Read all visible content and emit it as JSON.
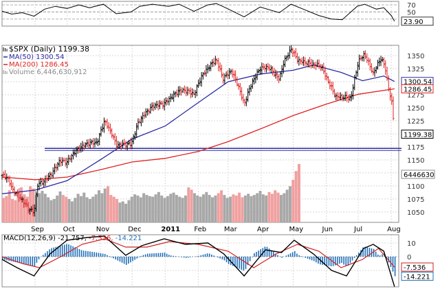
{
  "chart_data": {
    "type": "line",
    "panels": {
      "rsi": {
        "levels": [
          70,
          50,
          30
        ],
        "ylim": [
          10,
          80
        ],
        "current_value": "23.90",
        "series": [
          {
            "x": "2010-08-01",
            "y": 52
          },
          {
            "x": "2010-08-10",
            "y": 44
          },
          {
            "x": "2010-08-20",
            "y": 48
          },
          {
            "x": "2010-08-31",
            "y": 38
          },
          {
            "x": "2010-09-10",
            "y": 58
          },
          {
            "x": "2010-09-20",
            "y": 66
          },
          {
            "x": "2010-10-01",
            "y": 60
          },
          {
            "x": "2010-10-12",
            "y": 70
          },
          {
            "x": "2010-10-22",
            "y": 62
          },
          {
            "x": "2010-11-04",
            "y": 72
          },
          {
            "x": "2010-11-16",
            "y": 45
          },
          {
            "x": "2010-11-30",
            "y": 50
          },
          {
            "x": "2010-12-08",
            "y": 66
          },
          {
            "x": "2010-12-20",
            "y": 72
          },
          {
            "x": "2011-01-04",
            "y": 66
          },
          {
            "x": "2011-01-14",
            "y": 72
          },
          {
            "x": "2011-01-28",
            "y": 52
          },
          {
            "x": "2011-02-10",
            "y": 70
          },
          {
            "x": "2011-02-18",
            "y": 74
          },
          {
            "x": "2011-02-28",
            "y": 60
          },
          {
            "x": "2011-03-16",
            "y": 36
          },
          {
            "x": "2011-03-31",
            "y": 64
          },
          {
            "x": "2011-04-18",
            "y": 48
          },
          {
            "x": "2011-04-29",
            "y": 72
          },
          {
            "x": "2011-05-12",
            "y": 56
          },
          {
            "x": "2011-05-25",
            "y": 40
          },
          {
            "x": "2011-06-06",
            "y": 30
          },
          {
            "x": "2011-06-16",
            "y": 28
          },
          {
            "x": "2011-06-30",
            "y": 66
          },
          {
            "x": "2011-07-07",
            "y": 72
          },
          {
            "x": "2011-07-18",
            "y": 58
          },
          {
            "x": "2011-07-25",
            "y": 62
          },
          {
            "x": "2011-08-01",
            "y": 40
          },
          {
            "x": "2011-08-04",
            "y": 23.9
          }
        ]
      },
      "price": {
        "legend": [
          {
            "label": "$SPX (Daily) 1199.38",
            "color": "#000000",
            "marker": "bars"
          },
          {
            "label": "MA(50) 1300.54",
            "color": "#2a2aa0",
            "marker": "line"
          },
          {
            "label": "MA(200) 1286.45",
            "color": "#e02020",
            "marker": "line"
          },
          {
            "label": "Volume 6,446,630,912",
            "color": "#888888",
            "marker": "vbars"
          }
        ],
        "ylim": [
          1030,
          1370
        ],
        "y_ticks": [
          1050,
          1075,
          1100,
          1125,
          1150,
          1175,
          1200,
          1225,
          1250,
          1275,
          1300,
          1325,
          1350
        ],
        "price_tags": [
          {
            "text": "1300.54",
            "value": 1300.54,
            "style": "ma50"
          },
          {
            "text": "1286.45",
            "value": 1286.45,
            "style": "ma200"
          },
          {
            "text": "1199.38",
            "value": 1199.38,
            "style": "last"
          }
        ],
        "volume_tag": "6446630",
        "support_level": 1172,
        "close_series": [
          {
            "x": "2010-08-01",
            "y": 1120
          },
          {
            "x": "2010-08-06",
            "y": 1116
          },
          {
            "x": "2010-08-11",
            "y": 1092
          },
          {
            "x": "2010-08-16",
            "y": 1082
          },
          {
            "x": "2010-08-20",
            "y": 1072
          },
          {
            "x": "2010-08-26",
            "y": 1056
          },
          {
            "x": "2010-08-31",
            "y": 1049
          },
          {
            "x": "2010-09-03",
            "y": 1102
          },
          {
            "x": "2010-09-10",
            "y": 1110
          },
          {
            "x": "2010-09-17",
            "y": 1125
          },
          {
            "x": "2010-09-24",
            "y": 1148
          },
          {
            "x": "2010-10-01",
            "y": 1146
          },
          {
            "x": "2010-10-08",
            "y": 1165
          },
          {
            "x": "2010-10-15",
            "y": 1176
          },
          {
            "x": "2010-10-22",
            "y": 1183
          },
          {
            "x": "2010-10-29",
            "y": 1183
          },
          {
            "x": "2010-11-05",
            "y": 1225
          },
          {
            "x": "2010-11-12",
            "y": 1200
          },
          {
            "x": "2010-11-16",
            "y": 1178
          },
          {
            "x": "2010-11-23",
            "y": 1180
          },
          {
            "x": "2010-11-30",
            "y": 1180
          },
          {
            "x": "2010-12-07",
            "y": 1223
          },
          {
            "x": "2010-12-14",
            "y": 1241
          },
          {
            "x": "2010-12-21",
            "y": 1254
          },
          {
            "x": "2010-12-31",
            "y": 1258
          },
          {
            "x": "2011-01-07",
            "y": 1271
          },
          {
            "x": "2011-01-14",
            "y": 1283
          },
          {
            "x": "2011-01-21",
            "y": 1283
          },
          {
            "x": "2011-01-28",
            "y": 1276
          },
          {
            "x": "2011-02-04",
            "y": 1310
          },
          {
            "x": "2011-02-11",
            "y": 1329
          },
          {
            "x": "2011-02-18",
            "y": 1343
          },
          {
            "x": "2011-02-24",
            "y": 1306
          },
          {
            "x": "2011-03-04",
            "y": 1321
          },
          {
            "x": "2011-03-10",
            "y": 1295
          },
          {
            "x": "2011-03-16",
            "y": 1257
          },
          {
            "x": "2011-03-23",
            "y": 1297
          },
          {
            "x": "2011-03-31",
            "y": 1326
          },
          {
            "x": "2011-04-08",
            "y": 1328
          },
          {
            "x": "2011-04-18",
            "y": 1305
          },
          {
            "x": "2011-04-22",
            "y": 1337
          },
          {
            "x": "2011-04-29",
            "y": 1363
          },
          {
            "x": "2011-05-06",
            "y": 1340
          },
          {
            "x": "2011-05-13",
            "y": 1337
          },
          {
            "x": "2011-05-20",
            "y": 1333
          },
          {
            "x": "2011-05-27",
            "y": 1331
          },
          {
            "x": "2011-06-03",
            "y": 1300
          },
          {
            "x": "2011-06-10",
            "y": 1271
          },
          {
            "x": "2011-06-17",
            "y": 1271
          },
          {
            "x": "2011-06-24",
            "y": 1268
          },
          {
            "x": "2011-07-01",
            "y": 1339
          },
          {
            "x": "2011-07-07",
            "y": 1353
          },
          {
            "x": "2011-07-15",
            "y": 1316
          },
          {
            "x": "2011-07-22",
            "y": 1345
          },
          {
            "x": "2011-07-26",
            "y": 1331
          },
          {
            "x": "2011-07-29",
            "y": 1292
          },
          {
            "x": "2011-08-02",
            "y": 1254
          },
          {
            "x": "2011-08-04",
            "y": 1199
          }
        ],
        "ma50_series": [
          {
            "x": "2010-08-01",
            "y": 1085
          },
          {
            "x": "2010-09-01",
            "y": 1092
          },
          {
            "x": "2010-10-01",
            "y": 1110
          },
          {
            "x": "2010-11-01",
            "y": 1150
          },
          {
            "x": "2010-12-01",
            "y": 1190
          },
          {
            "x": "2011-01-01",
            "y": 1215
          },
          {
            "x": "2011-02-01",
            "y": 1260
          },
          {
            "x": "2011-03-01",
            "y": 1300
          },
          {
            "x": "2011-04-01",
            "y": 1315
          },
          {
            "x": "2011-05-01",
            "y": 1322
          },
          {
            "x": "2011-05-20",
            "y": 1332
          },
          {
            "x": "2011-06-15",
            "y": 1318
          },
          {
            "x": "2011-07-05",
            "y": 1302
          },
          {
            "x": "2011-07-25",
            "y": 1311
          },
          {
            "x": "2011-08-04",
            "y": 1300.54
          }
        ],
        "ma200_series": [
          {
            "x": "2010-08-01",
            "y": 1117
          },
          {
            "x": "2010-09-01",
            "y": 1112
          },
          {
            "x": "2010-10-01",
            "y": 1117
          },
          {
            "x": "2010-11-01",
            "y": 1131
          },
          {
            "x": "2010-12-01",
            "y": 1146
          },
          {
            "x": "2011-01-01",
            "y": 1153
          },
          {
            "x": "2011-02-01",
            "y": 1166
          },
          {
            "x": "2011-03-01",
            "y": 1185
          },
          {
            "x": "2011-04-01",
            "y": 1210
          },
          {
            "x": "2011-05-01",
            "y": 1235
          },
          {
            "x": "2011-06-01",
            "y": 1257
          },
          {
            "x": "2011-07-01",
            "y": 1276
          },
          {
            "x": "2011-08-04",
            "y": 1286.45
          }
        ],
        "volume_bars": {
          "start": "2010-08-01",
          "interval_days": 2.8,
          "scale_note": "relative",
          "values": [
            0.42,
            0.45,
            0.55,
            0.4,
            0.38,
            0.52,
            0.6,
            0.48,
            0.44,
            0.62,
            0.58,
            0.47,
            0.5,
            0.54,
            0.49,
            0.43,
            0.38,
            0.4,
            0.46,
            0.53,
            0.47,
            0.44,
            0.4,
            0.36,
            0.42,
            0.49,
            0.45,
            0.51,
            0.43,
            0.4,
            0.44,
            0.48,
            0.55,
            0.5,
            0.58,
            0.62,
            0.47,
            0.44,
            0.4,
            0.34,
            0.36,
            0.32,
            0.38,
            0.44,
            0.48,
            0.46,
            0.43,
            0.5,
            0.47,
            0.45,
            0.44,
            0.48,
            0.52,
            0.46,
            0.42,
            0.45,
            0.49,
            0.51,
            0.47,
            0.44,
            0.42,
            0.46,
            0.6,
            0.56,
            0.5,
            0.46,
            0.44,
            0.48,
            0.52,
            0.47,
            0.43,
            0.46,
            0.5,
            0.55,
            0.47,
            0.42,
            0.44,
            0.48,
            0.46,
            0.51,
            0.43,
            0.46,
            0.49,
            0.45,
            0.47,
            0.5,
            0.54,
            0.48,
            0.46,
            0.52,
            0.49,
            0.55,
            0.51,
            0.47,
            0.5,
            0.56,
            0.62,
            0.73,
            0.88,
            1.0
          ]
        }
      },
      "macd": {
        "title": "MACD(12,26,9) -21.757, -7.536, -14.221",
        "legend_segments": [
          {
            "text": "MACD(12,26,9) -21.757,",
            "color": "#000000"
          },
          {
            "text": " -7.536,",
            "color": "#d02020"
          },
          {
            "text": " -14.221",
            "color": "#1f6fb8"
          }
        ],
        "ylim": [
          -22,
          16
        ],
        "y_ticks": [
          10,
          0,
          -10
        ],
        "tags": [
          {
            "text": "-7.536",
            "value": -7.536,
            "style": "signal"
          },
          {
            "text": "-14.221",
            "value": -14.221,
            "style": "hist"
          }
        ],
        "macd_series": [
          {
            "x": "2010-08-01",
            "y": -2
          },
          {
            "x": "2010-08-15",
            "y": -8
          },
          {
            "x": "2010-08-31",
            "y": -14
          },
          {
            "x": "2010-09-15",
            "y": 2
          },
          {
            "x": "2010-10-01",
            "y": 12
          },
          {
            "x": "2010-10-20",
            "y": 14
          },
          {
            "x": "2010-11-05",
            "y": 15
          },
          {
            "x": "2010-11-25",
            "y": 1
          },
          {
            "x": "2010-12-10",
            "y": 8
          },
          {
            "x": "2010-12-31",
            "y": 13
          },
          {
            "x": "2011-01-20",
            "y": 9
          },
          {
            "x": "2011-02-10",
            "y": 10
          },
          {
            "x": "2011-02-25",
            "y": 2
          },
          {
            "x": "2011-03-16",
            "y": -14
          },
          {
            "x": "2011-04-05",
            "y": 5
          },
          {
            "x": "2011-04-20",
            "y": 3
          },
          {
            "x": "2011-05-02",
            "y": 12
          },
          {
            "x": "2011-05-20",
            "y": 2
          },
          {
            "x": "2011-06-06",
            "y": -10
          },
          {
            "x": "2011-06-20",
            "y": -14
          },
          {
            "x": "2011-07-06",
            "y": 6
          },
          {
            "x": "2011-07-15",
            "y": 9
          },
          {
            "x": "2011-07-25",
            "y": 4
          },
          {
            "x": "2011-08-04",
            "y": -21.757
          }
        ],
        "signal_series": [
          {
            "x": "2010-08-01",
            "y": 0
          },
          {
            "x": "2010-08-20",
            "y": -5
          },
          {
            "x": "2010-09-05",
            "y": -8
          },
          {
            "x": "2010-09-25",
            "y": 0
          },
          {
            "x": "2010-10-15",
            "y": 9
          },
          {
            "x": "2010-11-05",
            "y": 13
          },
          {
            "x": "2010-11-25",
            "y": 7
          },
          {
            "x": "2010-12-15",
            "y": 7
          },
          {
            "x": "2011-01-05",
            "y": 11
          },
          {
            "x": "2011-02-01",
            "y": 9
          },
          {
            "x": "2011-03-01",
            "y": 4
          },
          {
            "x": "2011-03-25",
            "y": -8
          },
          {
            "x": "2011-04-15",
            "y": 2
          },
          {
            "x": "2011-05-05",
            "y": 9
          },
          {
            "x": "2011-05-25",
            "y": 4
          },
          {
            "x": "2011-06-15",
            "y": -8
          },
          {
            "x": "2011-07-05",
            "y": -2
          },
          {
            "x": "2011-07-20",
            "y": 6
          },
          {
            "x": "2011-08-04",
            "y": -7.536
          }
        ]
      }
    },
    "x_axis": {
      "labels": [
        {
          "text": "Sep",
          "date": "2010-09-01",
          "bold": false
        },
        {
          "text": "Oct",
          "date": "2010-10-01",
          "bold": false
        },
        {
          "text": "Nov",
          "date": "2010-11-01",
          "bold": false
        },
        {
          "text": "Dec",
          "date": "2010-12-01",
          "bold": false
        },
        {
          "text": "2011",
          "date": "2011-01-01",
          "bold": true
        },
        {
          "text": "Feb",
          "date": "2011-02-01",
          "bold": false
        },
        {
          "text": "Mar",
          "date": "2011-03-01",
          "bold": false
        },
        {
          "text": "Apr",
          "date": "2011-04-01",
          "bold": false
        },
        {
          "text": "May",
          "date": "2011-05-01",
          "bold": false
        },
        {
          "text": "Jun",
          "date": "2011-06-01",
          "bold": false
        },
        {
          "text": "Jul",
          "date": "2011-07-01",
          "bold": false
        },
        {
          "text": "Aug",
          "date": "2011-08-01",
          "bold": false
        }
      ],
      "range": [
        "2010-08-01",
        "2011-08-08"
      ]
    },
    "colors": {
      "up": "#000000",
      "down": "#e02020",
      "ma50": "#2a2aa0",
      "ma200": "#e02020",
      "support": "#2a2aa0",
      "volume_up": "#a8a8a8",
      "volume_down": "#f0a0a0",
      "histogram": "#1f6fb8",
      "grid": "#d8d8d8"
    },
    "grid": true
  }
}
